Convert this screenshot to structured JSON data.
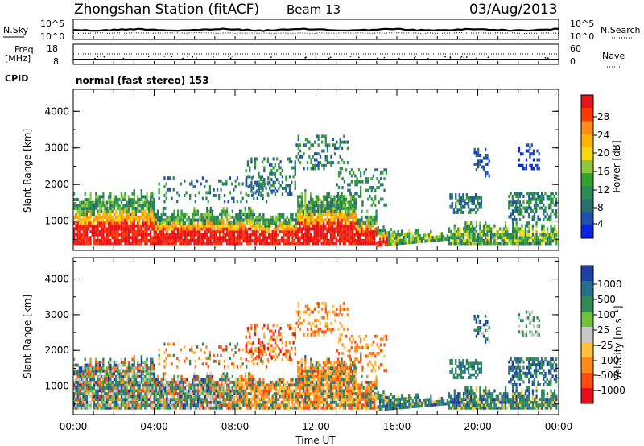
{
  "header": {
    "station": "Zhongshan Station (fitACF)",
    "beam": "Beam 13",
    "date": "03/Aug/2013"
  },
  "strips": {
    "nsky_label": "N.Sky",
    "nsky_ticks": [
      "10^5",
      "10^0"
    ],
    "nsearch_label": "N.Search",
    "nsearch_ticks": [
      "10^5",
      "10^0"
    ],
    "freq_label_line1": "Freq.",
    "freq_label_line2": "[MHz]",
    "freq_ticks": [
      "18",
      "8"
    ],
    "nave_label": "Nave",
    "nave_ticks": [
      "60",
      "0"
    ],
    "cpid_label": "CPID",
    "cpid_value": "normal (fast stereo) 153"
  },
  "chart_data": [
    {
      "type": "heatmap",
      "name": "power-panel",
      "ylabel": "Slant Range [km]",
      "yticks": [
        "4000",
        "3000",
        "2000",
        "1000"
      ],
      "ylim": [
        200,
        4600
      ],
      "xlim": [
        0,
        24
      ],
      "xticks": [
        "00:00",
        "04:00",
        "08:00",
        "12:00",
        "16:00",
        "20:00",
        "00:00"
      ],
      "colorbar_label": "Power [dB]",
      "colorbar_ticks": [
        "28",
        "24",
        "20",
        "16",
        "12",
        "8",
        "4"
      ],
      "colorbar_colors": [
        "#e8141c",
        "#ff3a00",
        "#ff8a1a",
        "#ffb400",
        "#f5d80f",
        "#8ec83a",
        "#2ea32e",
        "#2c8a55",
        "#2a6e6e",
        "#1f4fb0",
        "#0a24e6"
      ]
    },
    {
      "type": "heatmap",
      "name": "velocity-panel",
      "ylabel": "Slant Range [km]",
      "yticks": [
        "4000",
        "3000",
        "2000",
        "1000"
      ],
      "ylim": [
        200,
        4600
      ],
      "xlim": [
        0,
        24
      ],
      "xticks": [
        "00:00",
        "04:00",
        "08:00",
        "12:00",
        "16:00",
        "20:00",
        "00:00"
      ],
      "xlabel": "Time UT",
      "colorbar_label": "Velocity [m s⁻¹]",
      "colorbar_ticks": [
        "1000",
        "500",
        "100",
        "25",
        "-25",
        "-100",
        "-500",
        "-1000"
      ],
      "colorbar_colors": [
        "#1e3ea8",
        "#2a6e8e",
        "#2f8a56",
        "#6cc23c",
        "#c8c8c8",
        "#ffc23a",
        "#ff8a1a",
        "#ff4a10",
        "#e8101c"
      ]
    }
  ]
}
